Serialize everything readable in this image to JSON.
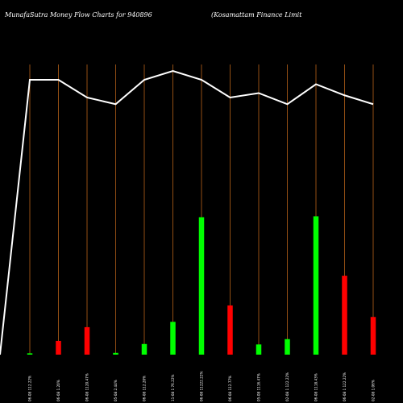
{
  "title_left": "MunafaSutra  Money Flow  Charts for 940896",
  "title_right": "(Kosamattam Finance    Limit",
  "chart_data": {
    "type": "bar",
    "title": "MunafaSutra  Money Flow  Charts for 940896",
    "categories": [
      "06-08 112.22%",
      "06-08 1.20%",
      "06-08 1120.47%",
      "05-08 2.44%",
      "06-08 112.20%",
      "11-08 1 76.22%",
      "06-08 11222.22%",
      "06-08 112.77%",
      "05-08 1116.47%",
      "02-08 1 122.22%",
      "06-08 1118.43%",
      "06-08 1 122.22%",
      "02-08 1.06%"
    ],
    "series": [
      {
        "values": [
          0.3,
          3.1,
          6.2,
          0.4,
          2.4,
          7.4,
          31.0,
          11.1,
          2.3,
          3.5,
          31.2,
          17.8,
          8.5
        ],
        "colors": [
          "#00ff00",
          "#ff0000",
          "#ff0000",
          "#00ff00",
          "#00ff00",
          "#00ff00",
          "#00ff00",
          "#ff0000",
          "#00ff00",
          "#00ff00",
          "#00ff00",
          "#ff0000",
          "#ff0000"
        ]
      }
    ],
    "line": [
      62,
      62,
      58,
      56.5,
      62,
      64,
      62,
      58,
      59,
      56.5,
      61,
      58.5,
      56.5
    ],
    "ylim": [
      0,
      80
    ],
    "colors": {
      "up": "#00ff00",
      "down": "#ff0000",
      "line": "#ffffff",
      "grid": "#b8621a",
      "background": "#000000"
    }
  }
}
